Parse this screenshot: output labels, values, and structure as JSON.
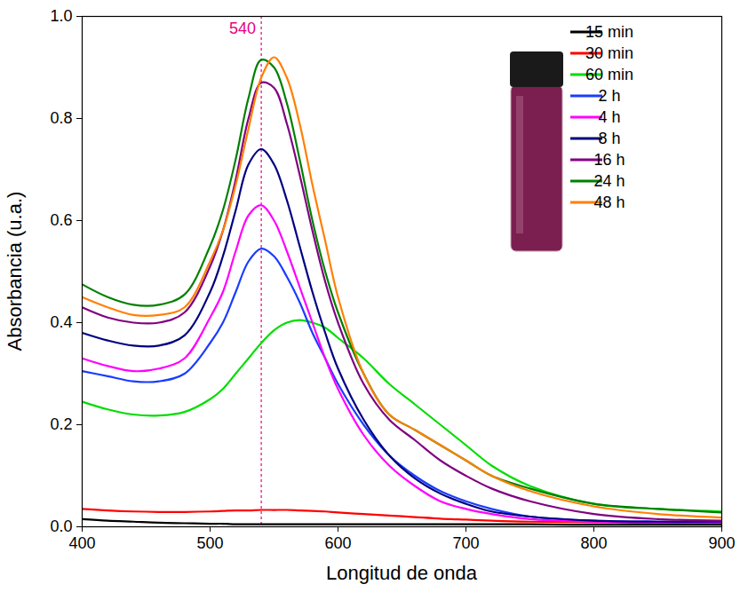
{
  "chart_data": {
    "type": "line",
    "x_label": "Longitud de onda",
    "y_label": "Absorbancia (u.a.)",
    "xlim": [
      400,
      900
    ],
    "xticks": [
      400,
      500,
      600,
      700,
      800,
      900
    ],
    "ylim": [
      0,
      1.0
    ],
    "yticks": [
      {
        "value": 0,
        "label": "0.0"
      },
      0.2,
      0.4,
      0.6,
      0.8,
      {
        "value": 1.0,
        "label": "1.0"
      }
    ],
    "grid": false,
    "legend": "top-right",
    "annotations": [
      {
        "text": "540",
        "x": 540,
        "color": "#e6007e",
        "line_style": "dashed"
      }
    ],
    "x": [
      400,
      420,
      440,
      460,
      480,
      500,
      510,
      520,
      530,
      540,
      550,
      560,
      570,
      580,
      590,
      600,
      620,
      640,
      660,
      680,
      700,
      720,
      750,
      800,
      850,
      900
    ],
    "series": [
      {
        "name": "15 min",
        "color": "#000000",
        "values": [
          0.015,
          0.012,
          0.01,
          0.008,
          0.007,
          0.006,
          0.006,
          0.005,
          0.005,
          0.005,
          0.005,
          0.005,
          0.005,
          0.005,
          0.005,
          0.005,
          0.005,
          0.005,
          0.005,
          0.005,
          0.005,
          0.005,
          0.005,
          0.004,
          0.004,
          0.004
        ]
      },
      {
        "name": "30 min",
        "color": "#ff0000",
        "values": [
          0.035,
          0.032,
          0.03,
          0.029,
          0.029,
          0.03,
          0.031,
          0.032,
          0.032,
          0.033,
          0.033,
          0.033,
          0.032,
          0.031,
          0.03,
          0.028,
          0.025,
          0.022,
          0.019,
          0.016,
          0.014,
          0.012,
          0.01,
          0.009,
          0.008,
          0.008
        ]
      },
      {
        "name": "60 min",
        "color": "#00dd00",
        "values": [
          0.245,
          0.23,
          0.22,
          0.218,
          0.225,
          0.25,
          0.27,
          0.3,
          0.33,
          0.36,
          0.385,
          0.4,
          0.405,
          0.4,
          0.39,
          0.37,
          0.33,
          0.28,
          0.24,
          0.2,
          0.16,
          0.12,
          0.08,
          0.045,
          0.035,
          0.03
        ]
      },
      {
        "name": "2 h",
        "color": "#1a3cff",
        "values": [
          0.305,
          0.295,
          0.285,
          0.285,
          0.3,
          0.36,
          0.4,
          0.46,
          0.52,
          0.545,
          0.53,
          0.49,
          0.44,
          0.38,
          0.33,
          0.28,
          0.2,
          0.14,
          0.1,
          0.07,
          0.05,
          0.035,
          0.02,
          0.012,
          0.01,
          0.01
        ]
      },
      {
        "name": "4 h",
        "color": "#ff00ff",
        "values": [
          0.33,
          0.315,
          0.305,
          0.31,
          0.33,
          0.41,
          0.46,
          0.54,
          0.61,
          0.63,
          0.6,
          0.54,
          0.47,
          0.4,
          0.33,
          0.27,
          0.18,
          0.12,
          0.08,
          0.05,
          0.035,
          0.025,
          0.015,
          0.01,
          0.008,
          0.008
        ]
      },
      {
        "name": "8 h",
        "color": "#000080",
        "values": [
          0.38,
          0.365,
          0.355,
          0.355,
          0.375,
          0.46,
          0.53,
          0.62,
          0.71,
          0.74,
          0.71,
          0.64,
          0.55,
          0.46,
          0.38,
          0.31,
          0.21,
          0.14,
          0.095,
          0.065,
          0.045,
          0.03,
          0.02,
          0.012,
          0.01,
          0.01
        ]
      },
      {
        "name": "16 h",
        "color": "#800080",
        "values": [
          0.43,
          0.41,
          0.4,
          0.4,
          0.42,
          0.51,
          0.58,
          0.68,
          0.8,
          0.87,
          0.86,
          0.79,
          0.69,
          0.58,
          0.48,
          0.4,
          0.28,
          0.21,
          0.17,
          0.13,
          0.1,
          0.075,
          0.05,
          0.025,
          0.015,
          0.012
        ]
      },
      {
        "name": "24 h",
        "color": "#008000",
        "values": [
          0.475,
          0.45,
          0.435,
          0.435,
          0.455,
          0.55,
          0.62,
          0.72,
          0.84,
          0.915,
          0.9,
          0.83,
          0.72,
          0.6,
          0.5,
          0.42,
          0.3,
          0.22,
          0.19,
          0.16,
          0.13,
          0.1,
          0.075,
          0.045,
          0.035,
          0.028
        ]
      },
      {
        "name": "48 h",
        "color": "#ff8000",
        "values": [
          0.45,
          0.43,
          0.415,
          0.415,
          0.43,
          0.52,
          0.58,
          0.67,
          0.78,
          0.88,
          0.92,
          0.88,
          0.79,
          0.67,
          0.56,
          0.45,
          0.3,
          0.22,
          0.19,
          0.16,
          0.13,
          0.1,
          0.07,
          0.04,
          0.025,
          0.018
        ]
      }
    ]
  }
}
